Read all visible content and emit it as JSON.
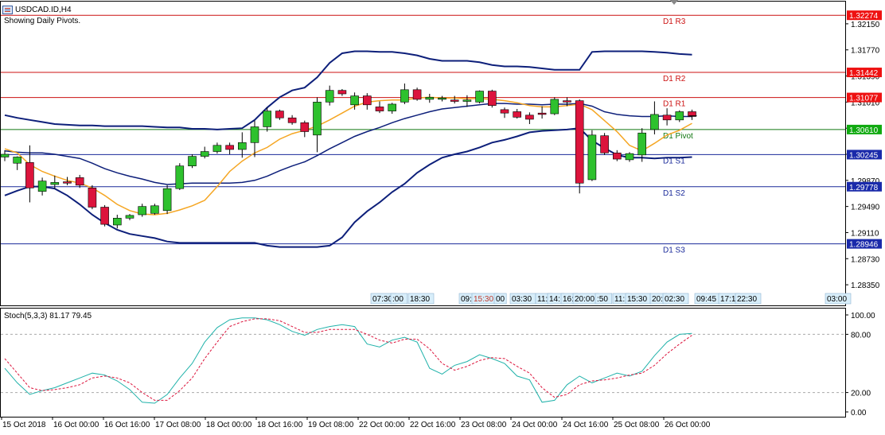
{
  "window": {
    "title": "USDCAD.ID,H4",
    "subtitle": "Showing Daily Pivots.",
    "icon": "chart-window-icon"
  },
  "colors": {
    "bull": "#2ec12e",
    "bear": "#dc143c",
    "bb": "#0d1f7a",
    "ma": "#f5a623",
    "pivot_r": "#cc1111",
    "pivot_p": "#117711",
    "pivot_s": "#1a2a9a",
    "stoch_main": "#20b2aa",
    "stoch_signal": "#dc143c",
    "tag_red": "#ee1111",
    "tag_green": "#11aa11",
    "tag_blue": "#1a2aaa"
  },
  "chart_data": [
    {
      "type": "candlestick",
      "symbol": "USDCAD.ID",
      "timeframe": "H4",
      "ylim": [
        1.2805,
        1.3245
      ],
      "y_ticks": [
        "1.32150",
        "1.31770",
        "1.31390",
        "1.31010",
        "1.30630",
        "1.30250",
        "1.29870",
        "1.29490",
        "1.29110",
        "1.28730",
        "1.28350"
      ],
      "x_ticks": [
        "15 Oct 2018",
        "16 Oct 00:00",
        "16 Oct 16:00",
        "17 Oct 08:00",
        "18 Oct 00:00",
        "18 Oct 16:00",
        "19 Oct 08:00",
        "22 Oct 00:00",
        "22 Oct 16:00",
        "23 Oct 08:00",
        "24 Oct 00:00",
        "24 Oct 16:00",
        "25 Oct 08:00",
        "26 Oct 00:00"
      ],
      "candles": [
        {
          "o": 1.3021,
          "h": 1.3031,
          "l": 1.3015,
          "c": 1.3025
        },
        {
          "o": 1.3012,
          "h": 1.3022,
          "l": 1.3002,
          "c": 1.3021
        },
        {
          "o": 1.3013,
          "h": 1.3038,
          "l": 1.2955,
          "c": 1.2976
        },
        {
          "o": 1.2971,
          "h": 1.2991,
          "l": 1.2965,
          "c": 1.2986
        },
        {
          "o": 1.2981,
          "h": 1.2994,
          "l": 1.2975,
          "c": 1.2984
        },
        {
          "o": 1.2985,
          "h": 1.2992,
          "l": 1.298,
          "c": 1.2983
        },
        {
          "o": 1.2991,
          "h": 1.2995,
          "l": 1.2976,
          "c": 1.298
        },
        {
          "o": 1.2976,
          "h": 1.298,
          "l": 1.2945,
          "c": 1.2948
        },
        {
          "o": 1.2948,
          "h": 1.2951,
          "l": 1.292,
          "c": 1.2923
        },
        {
          "o": 1.2922,
          "h": 1.2937,
          "l": 1.2917,
          "c": 1.2932
        },
        {
          "o": 1.2932,
          "h": 1.2938,
          "l": 1.2929,
          "c": 1.2936
        },
        {
          "o": 1.2937,
          "h": 1.2953,
          "l": 1.2934,
          "c": 1.2949
        },
        {
          "o": 1.2939,
          "h": 1.2953,
          "l": 1.2937,
          "c": 1.295
        },
        {
          "o": 1.2943,
          "h": 1.298,
          "l": 1.2938,
          "c": 1.2975
        },
        {
          "o": 1.2975,
          "h": 1.3012,
          "l": 1.2973,
          "c": 1.3008
        },
        {
          "o": 1.3008,
          "h": 1.3025,
          "l": 1.3005,
          "c": 1.3022
        },
        {
          "o": 1.3022,
          "h": 1.3036,
          "l": 1.3019,
          "c": 1.3029
        },
        {
          "o": 1.3029,
          "h": 1.3042,
          "l": 1.3026,
          "c": 1.3038
        },
        {
          "o": 1.3038,
          "h": 1.3042,
          "l": 1.3025,
          "c": 1.3032
        },
        {
          "o": 1.3032,
          "h": 1.3057,
          "l": 1.302,
          "c": 1.3042
        },
        {
          "o": 1.3042,
          "h": 1.3074,
          "l": 1.3021,
          "c": 1.3065
        },
        {
          "o": 1.3065,
          "h": 1.3093,
          "l": 1.3058,
          "c": 1.3088
        },
        {
          "o": 1.3088,
          "h": 1.309,
          "l": 1.3075,
          "c": 1.3078
        },
        {
          "o": 1.3078,
          "h": 1.3082,
          "l": 1.3068,
          "c": 1.3071
        },
        {
          "o": 1.3071,
          "h": 1.3074,
          "l": 1.305,
          "c": 1.3058
        },
        {
          "o": 1.3053,
          "h": 1.3108,
          "l": 1.3028,
          "c": 1.3101
        },
        {
          "o": 1.3101,
          "h": 1.3125,
          "l": 1.3096,
          "c": 1.3118
        },
        {
          "o": 1.3118,
          "h": 1.312,
          "l": 1.311,
          "c": 1.3113
        },
        {
          "o": 1.3097,
          "h": 1.3115,
          "l": 1.309,
          "c": 1.311
        },
        {
          "o": 1.311,
          "h": 1.3114,
          "l": 1.309,
          "c": 1.3097
        },
        {
          "o": 1.3094,
          "h": 1.3102,
          "l": 1.3085,
          "c": 1.3088
        },
        {
          "o": 1.3088,
          "h": 1.31,
          "l": 1.3084,
          "c": 1.3098
        },
        {
          "o": 1.3101,
          "h": 1.3128,
          "l": 1.3098,
          "c": 1.3119
        },
        {
          "o": 1.3119,
          "h": 1.3122,
          "l": 1.3103,
          "c": 1.3105
        },
        {
          "o": 1.3105,
          "h": 1.3113,
          "l": 1.31,
          "c": 1.3108
        },
        {
          "o": 1.3105,
          "h": 1.311,
          "l": 1.3102,
          "c": 1.3107
        },
        {
          "o": 1.3104,
          "h": 1.311,
          "l": 1.3099,
          "c": 1.3102
        },
        {
          "o": 1.3102,
          "h": 1.3111,
          "l": 1.3094,
          "c": 1.3104
        },
        {
          "o": 1.3101,
          "h": 1.3118,
          "l": 1.3099,
          "c": 1.3117
        },
        {
          "o": 1.3117,
          "h": 1.3119,
          "l": 1.3093,
          "c": 1.3096
        },
        {
          "o": 1.309,
          "h": 1.3093,
          "l": 1.3078,
          "c": 1.3085
        },
        {
          "o": 1.3087,
          "h": 1.3091,
          "l": 1.3077,
          "c": 1.3079
        },
        {
          "o": 1.3082,
          "h": 1.3086,
          "l": 1.3069,
          "c": 1.3076
        },
        {
          "o": 1.3085,
          "h": 1.3095,
          "l": 1.3077,
          "c": 1.3083
        },
        {
          "o": 1.3084,
          "h": 1.3108,
          "l": 1.3082,
          "c": 1.3105
        },
        {
          "o": 1.3103,
          "h": 1.3108,
          "l": 1.3095,
          "c": 1.3101
        },
        {
          "o": 1.3103,
          "h": 1.3105,
          "l": 1.2968,
          "c": 1.2983
        },
        {
          "o": 1.2988,
          "h": 1.306,
          "l": 1.2986,
          "c": 1.3053
        },
        {
          "o": 1.3052,
          "h": 1.3056,
          "l": 1.3024,
          "c": 1.3027
        },
        {
          "o": 1.3027,
          "h": 1.3031,
          "l": 1.3015,
          "c": 1.3018
        },
        {
          "o": 1.3017,
          "h": 1.3028,
          "l": 1.3014,
          "c": 1.3026
        },
        {
          "o": 1.3024,
          "h": 1.3063,
          "l": 1.3014,
          "c": 1.3056
        },
        {
          "o": 1.3061,
          "h": 1.3102,
          "l": 1.3054,
          "c": 1.3083
        },
        {
          "o": 1.3082,
          "h": 1.3092,
          "l": 1.3067,
          "c": 1.3075
        },
        {
          "o": 1.3075,
          "h": 1.3089,
          "l": 1.3072,
          "c": 1.3087
        },
        {
          "o": 1.3087,
          "h": 1.309,
          "l": 1.3075,
          "c": 1.308
        }
      ],
      "bollinger_upper": [
        1.3082,
        1.3078,
        1.3075,
        1.3072,
        1.3069,
        1.3068,
        1.3067,
        1.3067,
        1.3066,
        1.3066,
        1.3066,
        1.3066,
        1.3065,
        1.3064,
        1.3064,
        1.3062,
        1.3062,
        1.3061,
        1.3062,
        1.3063,
        1.3075,
        1.3093,
        1.3108,
        1.3118,
        1.3122,
        1.3137,
        1.3158,
        1.3172,
        1.3175,
        1.3175,
        1.3174,
        1.3174,
        1.3172,
        1.3169,
        1.3164,
        1.3161,
        1.3161,
        1.3161,
        1.3159,
        1.3155,
        1.3153,
        1.3153,
        1.3152,
        1.315,
        1.3148,
        1.3148,
        1.3148,
        1.3174,
        1.3175,
        1.3175,
        1.3175,
        1.3175,
        1.3174,
        1.3173,
        1.3171,
        1.317
      ],
      "bollinger_mid": [
        1.303,
        1.3028,
        1.3027,
        1.3027,
        1.3025,
        1.3022,
        1.3019,
        1.3012,
        1.3004,
        1.2998,
        1.2993,
        1.2989,
        1.2984,
        1.2981,
        1.2982,
        1.2983,
        1.2983,
        1.2983,
        1.2983,
        1.2984,
        1.2987,
        1.2993,
        1.3001,
        1.3008,
        1.3014,
        1.3023,
        1.3033,
        1.3042,
        1.3051,
        1.3058,
        1.3064,
        1.3071,
        1.3077,
        1.3082,
        1.3087,
        1.3091,
        1.3093,
        1.3095,
        1.3097,
        1.3099,
        1.3099,
        1.3098,
        1.3098,
        1.3097,
        1.3098,
        1.3098,
        1.3099,
        1.3095,
        1.3087,
        1.3083,
        1.3081,
        1.308,
        1.308,
        1.3081,
        1.308,
        1.308
      ],
      "bollinger_lower": [
        1.2965,
        1.2972,
        1.2978,
        1.2978,
        1.2975,
        1.2965,
        1.2952,
        1.2937,
        1.2925,
        1.2915,
        1.2909,
        1.2906,
        1.2903,
        1.2898,
        1.2896,
        1.2896,
        1.2896,
        1.2896,
        1.2896,
        1.2896,
        1.2896,
        1.2892,
        1.289,
        1.289,
        1.289,
        1.289,
        1.2892,
        1.2904,
        1.2926,
        1.2942,
        1.2955,
        1.297,
        1.2982,
        1.2998,
        1.301,
        1.302,
        1.3025,
        1.3029,
        1.3035,
        1.3042,
        1.3046,
        1.3051,
        1.3057,
        1.3059,
        1.306,
        1.3061,
        1.3063,
        1.3045,
        1.3034,
        1.3024,
        1.302,
        1.302,
        1.3019,
        1.302,
        1.302,
        1.3021
      ],
      "moving_average": [
        1.3033,
        1.3027,
        1.301,
        1.3,
        1.2993,
        1.2987,
        1.2983,
        1.2976,
        1.2965,
        1.2952,
        1.2943,
        1.2938,
        1.2937,
        1.2939,
        1.2944,
        1.295,
        1.2958,
        1.2978,
        1.3,
        1.3015,
        1.3027,
        1.3035,
        1.3047,
        1.3055,
        1.306,
        1.3066,
        1.3075,
        1.3085,
        1.3095,
        1.3101,
        1.3103,
        1.3104,
        1.3104,
        1.3107,
        1.3108,
        1.3107,
        1.3107,
        1.3106,
        1.3106,
        1.3105,
        1.3103,
        1.31,
        1.3096,
        1.3094,
        1.3094,
        1.3096,
        1.3098,
        1.309,
        1.3074,
        1.3058,
        1.3038,
        1.303,
        1.3041,
        1.3053,
        1.306,
        1.307
      ],
      "pivots": [
        {
          "name": "D1 R3",
          "value": "1.32274",
          "v": 1.32274,
          "kind": "r"
        },
        {
          "name": "D1 R2",
          "value": "1.31442",
          "v": 1.31442,
          "kind": "r"
        },
        {
          "name": "D1 R1",
          "value": "1.31077",
          "v": 1.31077,
          "kind": "r"
        },
        {
          "name": "D1 Pivot",
          "value": "1.30610",
          "v": 1.3061,
          "kind": "p"
        },
        {
          "name": "D1 S1",
          "value": "1.30245",
          "v": 1.30245,
          "kind": "s"
        },
        {
          "name": "D1 S2",
          "value": "1.29778",
          "v": 1.29778,
          "kind": "s"
        },
        {
          "name": "D1 S3",
          "value": "1.28946",
          "v": 1.28946,
          "kind": "s"
        }
      ],
      "session_labels": [
        "07:30",
        ":00",
        "18:30",
        "09:",
        "15:30",
        "00",
        "03:30",
        "11:",
        "14:",
        "16:",
        "20:00",
        ":50",
        "11:",
        "15:30",
        "20:",
        "02:30",
        "09:45",
        "17:1",
        "22:30",
        "03:00"
      ]
    },
    {
      "type": "line",
      "title": "Stoch(5,3,3) 81.17 79.45",
      "ylim": [
        0,
        100
      ],
      "y_ticks": [
        "100.00",
        "80.00",
        "20.00",
        "0.00"
      ],
      "levels": [
        80,
        20
      ],
      "series": [
        {
          "name": "main",
          "values": [
            45,
            30,
            18,
            22,
            25,
            30,
            35,
            40,
            38,
            32,
            23,
            10,
            9,
            18,
            35,
            50,
            72,
            87,
            95,
            97,
            97,
            95,
            90,
            83,
            79,
            85,
            88,
            90,
            88,
            70,
            67,
            74,
            77,
            72,
            45,
            39,
            48,
            52,
            59,
            55,
            50,
            37,
            33,
            10,
            12,
            28,
            37,
            30,
            35,
            40,
            37,
            42,
            58,
            72,
            80,
            81
          ]
        },
        {
          "name": "signal",
          "values": [
            55,
            40,
            25,
            22,
            23,
            25,
            28,
            35,
            37,
            35,
            30,
            20,
            12,
            12,
            22,
            35,
            55,
            72,
            88,
            93,
            96,
            96,
            94,
            88,
            82,
            82,
            85,
            85,
            85,
            80,
            74,
            71,
            75,
            75,
            65,
            50,
            43,
            47,
            53,
            56,
            55,
            47,
            40,
            25,
            15,
            18,
            28,
            32,
            33,
            35,
            38,
            40,
            48,
            60,
            70,
            79
          ]
        }
      ]
    }
  ]
}
